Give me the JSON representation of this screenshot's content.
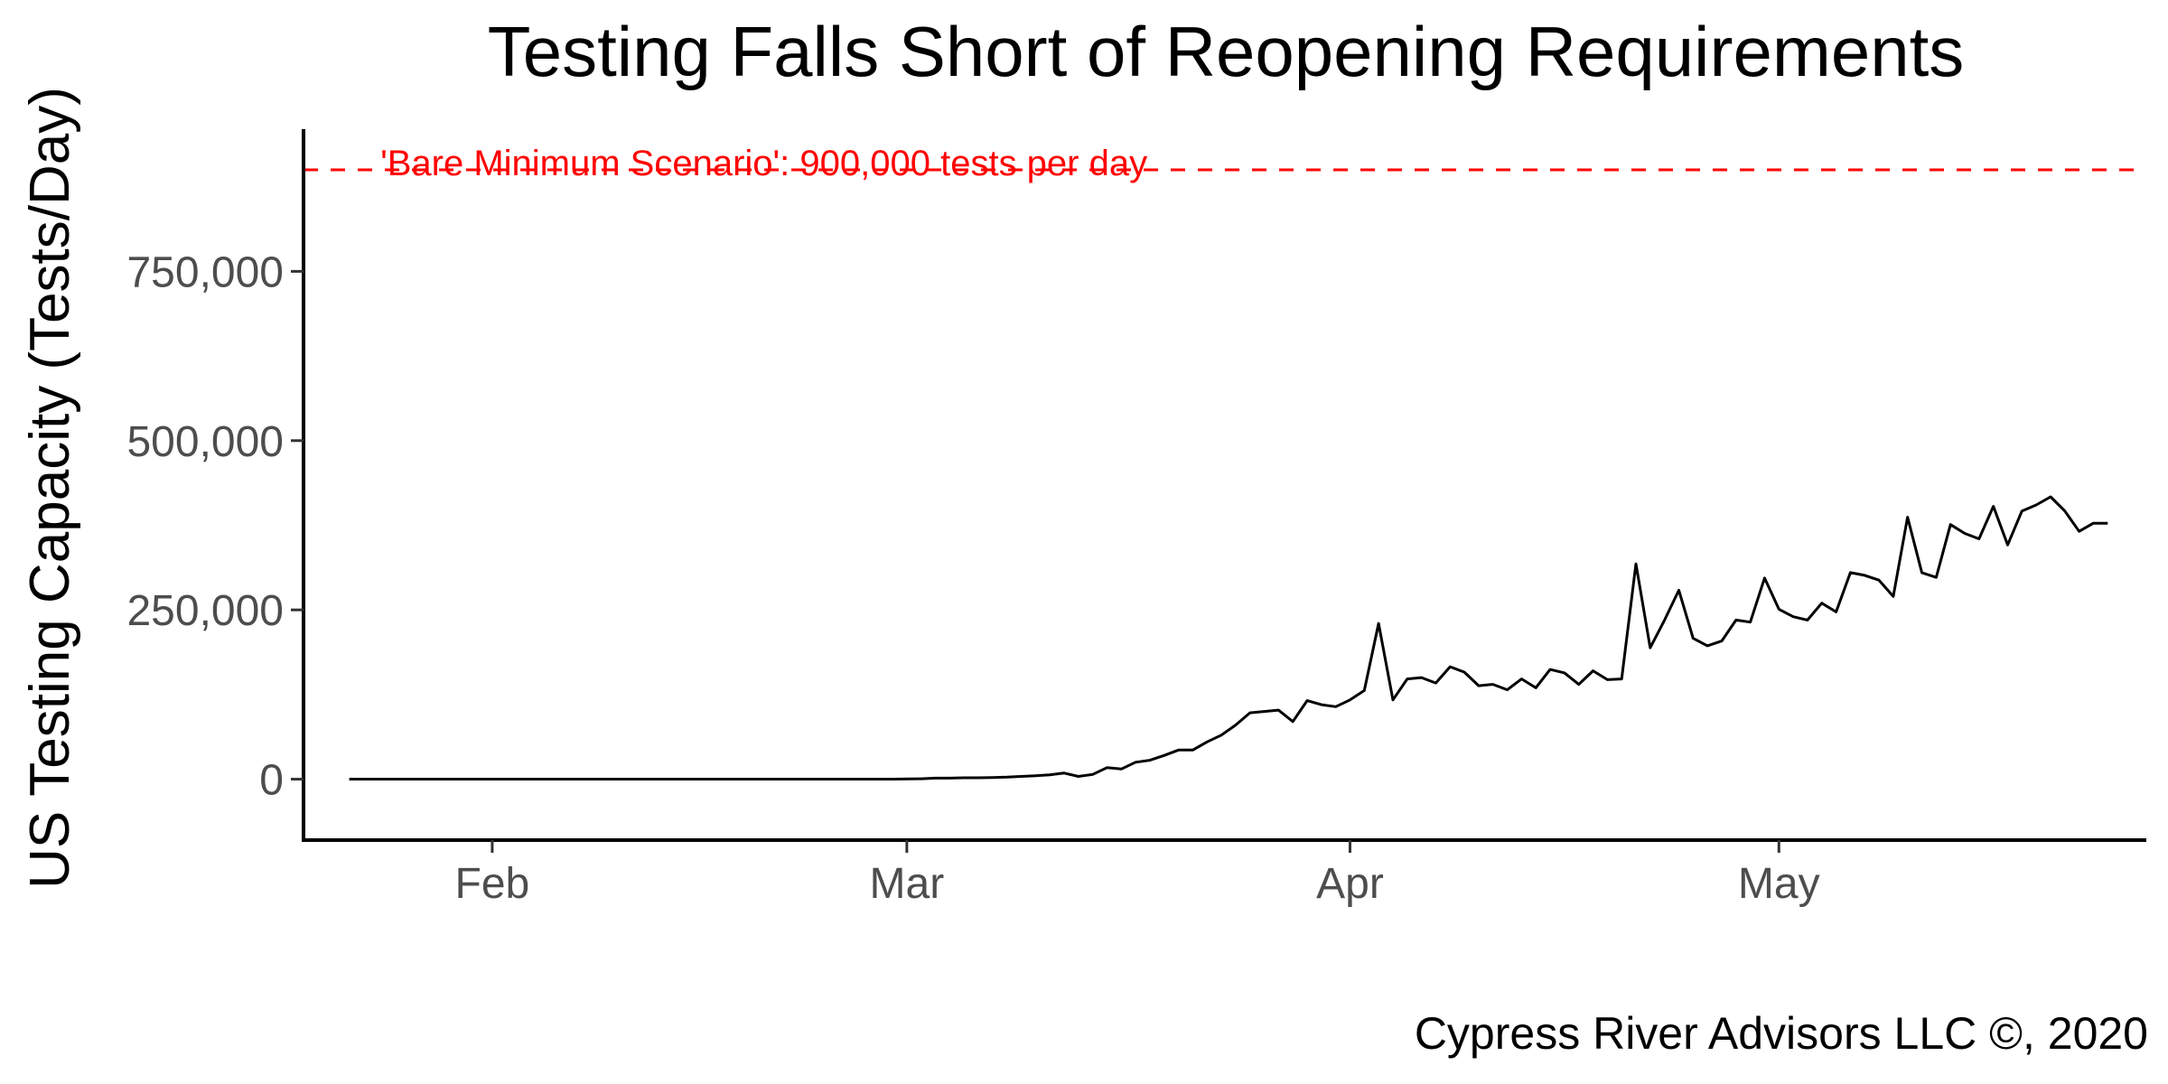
{
  "chart_data": {
    "type": "line",
    "title": "Testing Falls Short of Reopening Requirements",
    "ylabel": "US Testing Capacity (Tests/Day)",
    "xlabel": "",
    "caption": "Cypress River Advisors LLC ©, 2020",
    "x_range": [
      "2020-01-22",
      "2020-05-24"
    ],
    "ylim": [
      -90000,
      960000
    ],
    "y_ticks": [
      {
        "value": 0,
        "label": "0"
      },
      {
        "value": 250000,
        "label": "250,000"
      },
      {
        "value": 500000,
        "label": "500,000"
      },
      {
        "value": 750000,
        "label": "750,000"
      }
    ],
    "x_ticks": [
      {
        "date": "2020-02-01",
        "label": "Feb"
      },
      {
        "date": "2020-03-01",
        "label": "Mar"
      },
      {
        "date": "2020-04-01",
        "label": "Apr"
      },
      {
        "date": "2020-05-01",
        "label": "May"
      }
    ],
    "reference_line": {
      "value": 900000,
      "label": "'Bare Minimum Scenario': 900,000 tests per day",
      "color": "#ff0000",
      "style": "dashed"
    },
    "line_color": "#000000",
    "grid": false,
    "legend": "none",
    "series": [
      {
        "x": [
          "2020-01-22",
          "2020-02-29",
          "2020-03-02",
          "2020-03-03",
          "2020-03-04",
          "2020-03-05",
          "2020-03-06",
          "2020-03-07",
          "2020-03-08",
          "2020-03-09",
          "2020-03-10",
          "2020-03-11",
          "2020-03-12",
          "2020-03-13",
          "2020-03-14",
          "2020-03-15",
          "2020-03-16",
          "2020-03-17",
          "2020-03-18",
          "2020-03-19",
          "2020-03-20",
          "2020-03-21",
          "2020-03-22",
          "2020-03-23",
          "2020-03-24",
          "2020-03-25",
          "2020-03-26",
          "2020-03-27",
          "2020-03-28",
          "2020-03-29",
          "2020-03-30",
          "2020-03-31",
          "2020-04-01",
          "2020-04-02",
          "2020-04-03",
          "2020-04-04",
          "2020-04-05",
          "2020-04-06",
          "2020-04-07",
          "2020-04-08",
          "2020-04-09",
          "2020-04-10",
          "2020-04-11",
          "2020-04-12",
          "2020-04-13",
          "2020-04-14",
          "2020-04-15",
          "2020-04-16",
          "2020-04-17",
          "2020-04-18",
          "2020-04-19",
          "2020-04-20",
          "2020-04-21",
          "2020-04-22",
          "2020-04-23",
          "2020-04-24",
          "2020-04-25",
          "2020-04-26",
          "2020-04-27",
          "2020-04-28",
          "2020-04-29",
          "2020-04-30",
          "2020-05-01",
          "2020-05-02",
          "2020-05-03",
          "2020-05-04",
          "2020-05-05",
          "2020-05-06",
          "2020-05-07",
          "2020-05-08",
          "2020-05-09",
          "2020-05-10",
          "2020-05-11",
          "2020-05-12",
          "2020-05-13",
          "2020-05-14",
          "2020-05-15",
          "2020-05-16",
          "2020-05-17",
          "2020-05-18",
          "2020-05-19",
          "2020-05-20",
          "2020-05-21",
          "2020-05-22",
          "2020-05-23",
          "2020-05-24"
        ],
        "y": [
          0,
          0,
          600,
          1500,
          1500,
          2000,
          2000,
          2500,
          3000,
          4000,
          5000,
          6500,
          9000,
          4000,
          7000,
          17000,
          15000,
          25000,
          28000,
          35000,
          43000,
          43000,
          55000,
          65000,
          80000,
          98000,
          100000,
          102000,
          85000,
          116000,
          110000,
          107000,
          117000,
          131000,
          230000,
          117000,
          148000,
          150000,
          142000,
          166000,
          158000,
          138000,
          140000,
          132000,
          148000,
          135000,
          162000,
          157000,
          140000,
          160000,
          147000,
          148000,
          318000,
          194000,
          235000,
          279000,
          208000,
          197000,
          204000,
          235000,
          232000,
          297000,
          251000,
          240000,
          235000,
          260000,
          247000,
          305000,
          301000,
          294000,
          270000,
          387000,
          305000,
          298000,
          376000,
          363000,
          355000,
          403000,
          346000,
          396000,
          405000,
          417000,
          396000,
          366000,
          378000,
          378000
        ]
      }
    ]
  }
}
